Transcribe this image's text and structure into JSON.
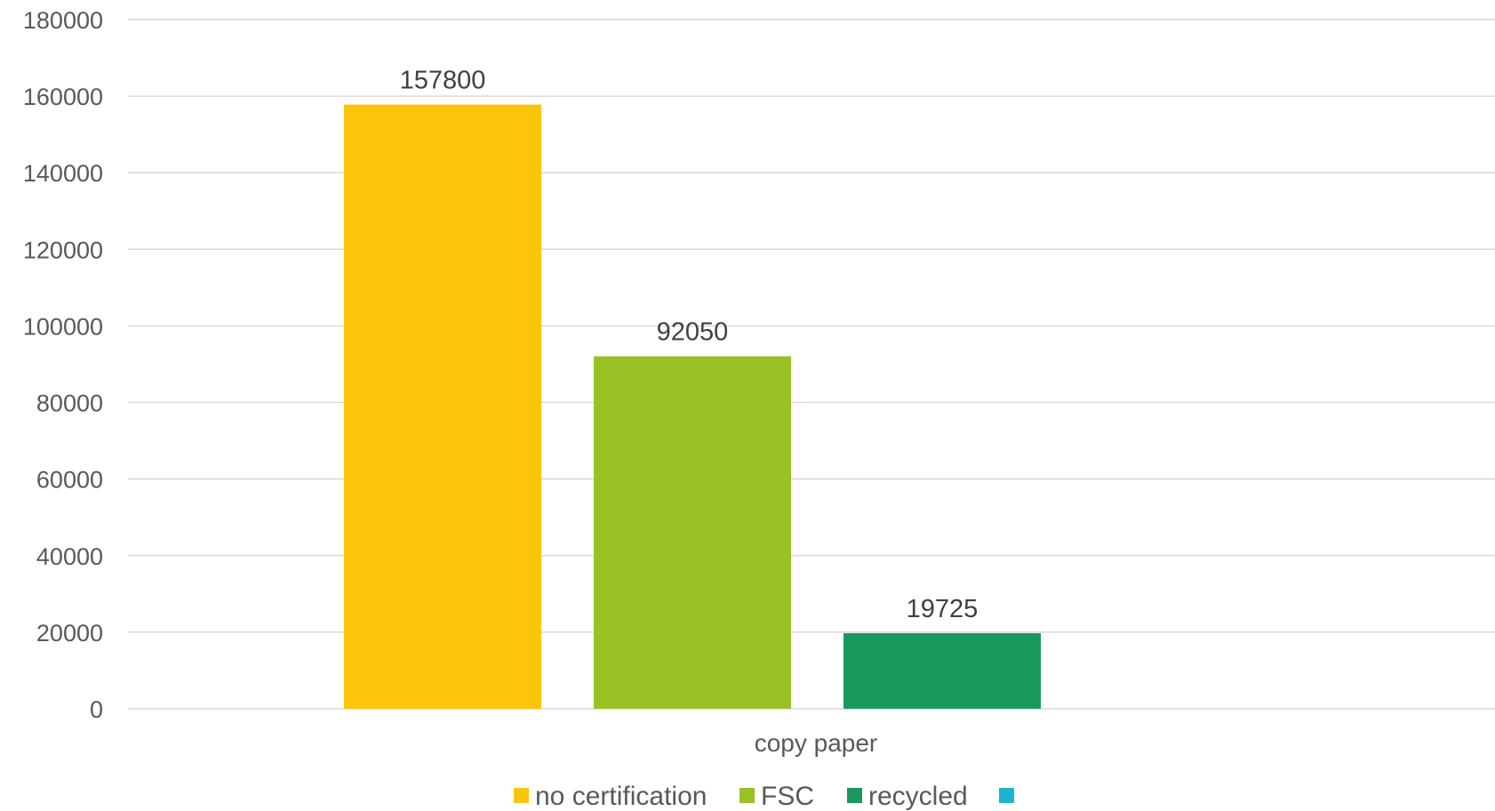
{
  "chart_data": {
    "type": "bar",
    "categories": [
      "copy paper"
    ],
    "series": [
      {
        "name": "no certification",
        "values": [
          157800
        ],
        "color": "#FBC60A"
      },
      {
        "name": "FSC",
        "values": [
          92050
        ],
        "color": "#98C123"
      },
      {
        "name": "recycled",
        "values": [
          19725
        ],
        "color": "#189A5D"
      },
      {
        "name": "",
        "values": [
          null
        ],
        "color": "#1FB3D2"
      }
    ],
    "data_labels": [
      "157800",
      "92050",
      "19725"
    ],
    "yticks": [
      "0",
      "20000",
      "40000",
      "60000",
      "80000",
      "100000",
      "120000",
      "140000",
      "160000",
      "180000"
    ],
    "ylim": [
      0,
      180000
    ],
    "grid": true,
    "legend_position": "bottom",
    "title": "",
    "xlabel": "",
    "ylabel": ""
  }
}
